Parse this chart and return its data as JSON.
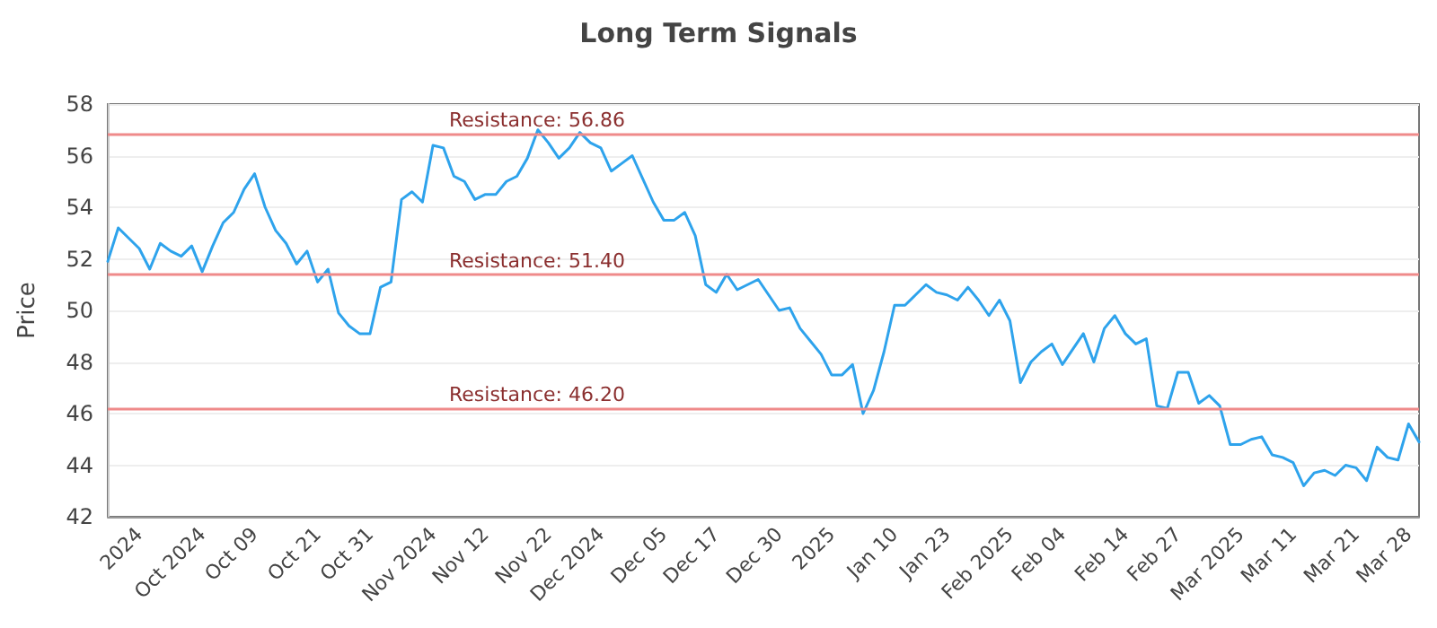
{
  "chart_data": {
    "type": "line",
    "title": "Long Term Signals",
    "ylabel": "Price",
    "categories": [
      null,
      null,
      null,
      "2024",
      null,
      null,
      null,
      null,
      null,
      "Oct 2024",
      null,
      null,
      null,
      null,
      "Oct 09",
      null,
      null,
      null,
      null,
      null,
      "Oct 21",
      null,
      null,
      null,
      null,
      "Oct 31",
      null,
      null,
      null,
      null,
      null,
      "Nov 2024",
      null,
      null,
      null,
      null,
      "Nov 12",
      null,
      null,
      null,
      null,
      null,
      "Nov 22",
      null,
      null,
      null,
      null,
      "Dec 2024",
      null,
      null,
      null,
      null,
      null,
      "Dec 05",
      null,
      null,
      null,
      null,
      "Dec 17",
      null,
      null,
      null,
      null,
      null,
      "Dec 30",
      null,
      null,
      null,
      null,
      "2025",
      null,
      null,
      null,
      null,
      null,
      "Jan 10",
      null,
      null,
      null,
      null,
      "Jan 23",
      null,
      null,
      null,
      null,
      null,
      "Feb 2025",
      null,
      null,
      null,
      null,
      "Feb 04",
      null,
      null,
      null,
      null,
      null,
      "Feb 14",
      null,
      null,
      null,
      null,
      "Feb 27",
      null,
      null,
      null,
      null,
      null,
      "Mar 2025",
      null,
      null,
      null,
      null,
      "Mar 11",
      null,
      null,
      null,
      null,
      null,
      "Mar 21",
      null,
      null,
      null,
      null,
      "Mar 28",
      null
    ],
    "series": [
      {
        "color": "#2ea3ec",
        "values": [
          51.9,
          53.2,
          52.8,
          52.4,
          51.6,
          52.6,
          52.3,
          52.1,
          52.5,
          51.5,
          52.5,
          53.4,
          53.8,
          54.7,
          55.3,
          54.0,
          53.1,
          52.6,
          51.8,
          52.3,
          51.1,
          51.6,
          49.9,
          49.4,
          49.1,
          49.1,
          50.9,
          51.1,
          54.3,
          54.6,
          54.2,
          56.4,
          56.3,
          55.2,
          55.0,
          54.3,
          54.5,
          54.5,
          55.0,
          55.2,
          55.9,
          57.0,
          56.5,
          55.9,
          56.3,
          56.9,
          56.5,
          56.3,
          55.4,
          55.7,
          56.0,
          55.1,
          54.2,
          53.5,
          53.5,
          53.8,
          52.9,
          51.0,
          50.7,
          51.4,
          50.8,
          51.0,
          51.2,
          50.6,
          50.0,
          50.1,
          49.3,
          48.8,
          48.3,
          47.5,
          47.5,
          47.9,
          46.0,
          46.9,
          48.4,
          50.2,
          50.2,
          50.6,
          51.0,
          50.7,
          50.6,
          50.4,
          50.9,
          50.4,
          49.8,
          50.4,
          49.6,
          47.2,
          48.0,
          48.4,
          48.7,
          47.9,
          48.5,
          49.1,
          48.0,
          49.3,
          49.8,
          49.1,
          48.7,
          48.9,
          46.3,
          46.2,
          47.6,
          47.6,
          46.4,
          46.7,
          46.3,
          44.8,
          44.8,
          45.0,
          45.1,
          44.4,
          44.3,
          44.1,
          43.2,
          43.7,
          43.8,
          43.6,
          44.0,
          43.9,
          43.4,
          44.7,
          44.3,
          44.2,
          45.6,
          44.9
        ]
      }
    ],
    "ylim": [
      42,
      58
    ],
    "yticks": [
      42,
      44,
      46,
      48,
      50,
      52,
      54,
      56,
      58
    ],
    "grid": "y",
    "marker": "none",
    "line_style": "solid",
    "ref_lines": [
      {
        "axis": "y",
        "value": 56.86,
        "label": "Resistance: 56.86",
        "color": "#ef8a8a"
      },
      {
        "axis": "y",
        "value": 51.4,
        "label": "Resistance: 51.40",
        "color": "#ef8a8a"
      },
      {
        "axis": "y",
        "value": 46.2,
        "label": "Resistance: 46.20",
        "color": "#ef8a8a"
      }
    ]
  }
}
